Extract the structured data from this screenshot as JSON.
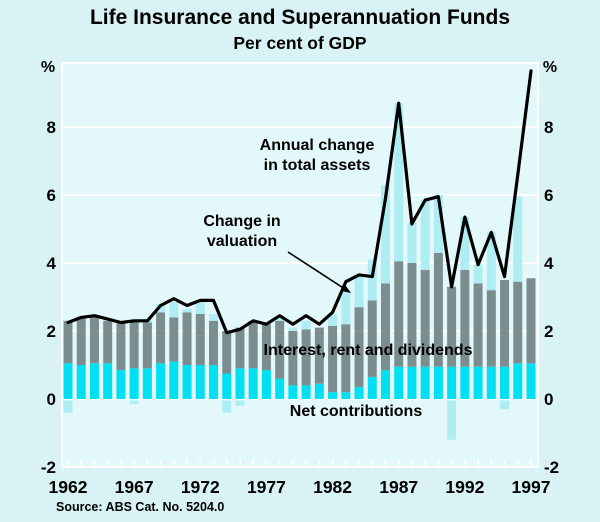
{
  "header": {
    "unit_left": "%",
    "unit_right": "%"
  },
  "footer": {
    "source": "Source: ABS Cat. No. 5204.0"
  },
  "labels": {
    "annual_change_line1": "Annual change",
    "annual_change_line2": "in total assets",
    "valuation_line1": "Change in",
    "valuation_line2": "valuation",
    "interest": "Interest, rent and dividends",
    "net_contributions": "Net contributions"
  },
  "colors": {
    "page_bg": "#d9f2f5",
    "plot_bg": "#e2f8fa",
    "grid": "#ffffff",
    "net_contributions": "#00e0f2",
    "interest": "#7c8d90",
    "valuation": "#aeeef3",
    "line": "#000000",
    "text": "#000000"
  },
  "chart_data": {
    "type": "bar",
    "subtype": "stacked-bars-with-line",
    "title": "Life Insurance and Superannuation Funds",
    "subtitle": "Per cent of GDP",
    "xlabel": "",
    "ylabel": "Per cent of GDP",
    "ylim": [
      -2,
      9.9
    ],
    "yticks": [
      8,
      6,
      4,
      2,
      0,
      -2
    ],
    "xticks": [
      1962,
      1967,
      1972,
      1977,
      1982,
      1987,
      1992,
      1997
    ],
    "grid": "horizontal, white, every 2 units",
    "legend_position": "in-plot text annotations",
    "years": [
      1962,
      1963,
      1964,
      1965,
      1966,
      1967,
      1968,
      1969,
      1970,
      1971,
      1972,
      1973,
      1974,
      1975,
      1976,
      1977,
      1978,
      1979,
      1980,
      1981,
      1982,
      1983,
      1984,
      1985,
      1986,
      1987,
      1988,
      1989,
      1990,
      1991,
      1992,
      1993,
      1994,
      1995,
      1996,
      1997
    ],
    "series": [
      {
        "name": "Net contributions",
        "type": "bar",
        "stack_order": 1,
        "color_key": "net_contributions",
        "values": [
          1.05,
          1.0,
          1.05,
          1.05,
          0.85,
          0.9,
          0.9,
          1.05,
          1.1,
          1.0,
          1.0,
          1.0,
          0.75,
          0.9,
          0.9,
          0.85,
          0.6,
          0.4,
          0.4,
          0.45,
          0.2,
          0.2,
          0.35,
          0.65,
          0.85,
          0.95,
          0.95,
          0.95,
          0.95,
          0.95,
          0.95,
          0.95,
          0.95,
          0.95,
          1.05,
          1.05
        ]
      },
      {
        "name": "Interest, rent and dividends",
        "type": "bar",
        "stack_order": 2,
        "color_key": "interest",
        "values": [
          1.25,
          1.4,
          1.4,
          1.25,
          1.4,
          1.4,
          1.35,
          1.5,
          1.3,
          1.55,
          1.5,
          1.3,
          1.25,
          1.2,
          1.4,
          1.35,
          1.7,
          1.6,
          1.65,
          1.65,
          1.95,
          2.0,
          2.35,
          2.25,
          2.55,
          3.1,
          3.05,
          2.85,
          3.35,
          2.35,
          2.85,
          2.45,
          2.25,
          2.55,
          2.4,
          2.5
        ]
      },
      {
        "name": "Change in valuation",
        "type": "bar",
        "stack_order": 3,
        "note": "negative values drawn below zero line",
        "color_key": "valuation",
        "values": [
          -0.4,
          0,
          0,
          0,
          0,
          -0.15,
          0.1,
          0.25,
          0.45,
          0.1,
          0.4,
          0.2,
          -0.4,
          -0.2,
          0,
          0,
          0.15,
          0.1,
          0.25,
          0,
          0.35,
          1.0,
          0.95,
          1.2,
          2.9,
          4.65,
          1.2,
          2.05,
          1.7,
          -1.2,
          1.55,
          0.55,
          1.7,
          -0.3,
          2.5,
          0
        ]
      },
      {
        "name": "Annual change in total assets",
        "type": "line",
        "color_key": "line",
        "values": [
          2.25,
          2.4,
          2.45,
          2.35,
          2.25,
          2.3,
          2.3,
          2.75,
          2.95,
          2.75,
          2.9,
          2.9,
          1.95,
          2.05,
          2.3,
          2.2,
          2.45,
          2.2,
          2.45,
          2.2,
          2.55,
          3.45,
          3.65,
          3.6,
          5.9,
          8.7,
          5.15,
          5.85,
          5.95,
          3.3,
          5.35,
          3.95,
          4.9,
          3.6,
          6.6,
          9.65
        ]
      }
    ]
  }
}
